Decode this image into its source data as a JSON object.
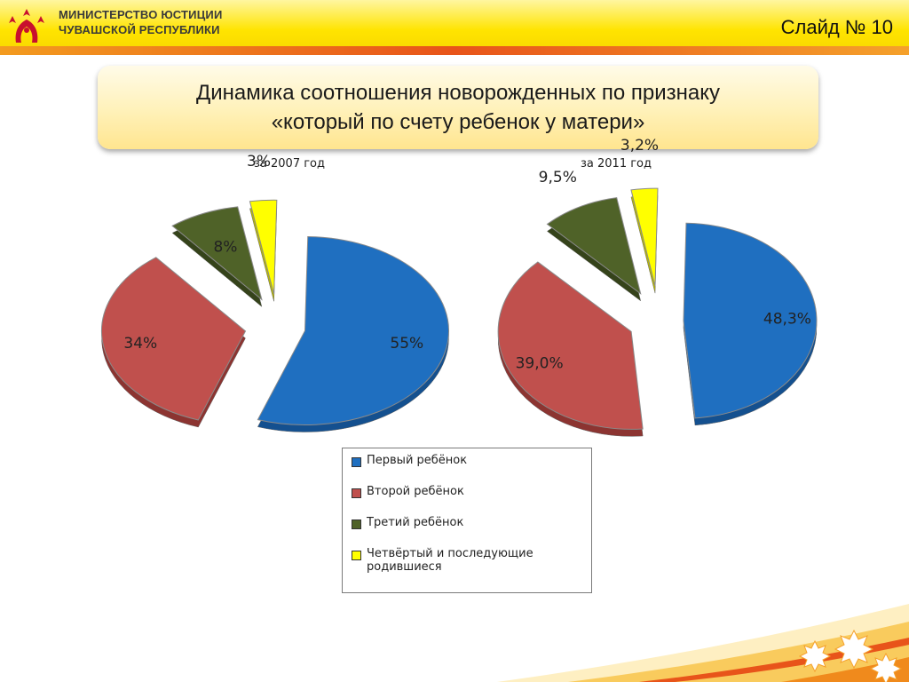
{
  "header": {
    "ministry_line1": "МИНИСТЕРСТВО ЮСТИЦИИ",
    "ministry_line2": "ЧУВАШСКОЙ РЕСПУБЛИКИ",
    "slide_number": "Слайд № 10"
  },
  "title": {
    "line1": "Динамика соотношения новорожденных по признаку",
    "line2": "«который по счету ребенок у матери»"
  },
  "chart_data": [
    {
      "type": "pie",
      "title": "за 2007 год",
      "categories": [
        "Первый ребёнок",
        "Второй ребёнок",
        "Третий ребёнок",
        "Четвёртый и последующие родившиеся"
      ],
      "values": [
        55,
        34,
        8,
        3
      ],
      "labels": [
        "55%",
        "34%",
        "8%",
        "3%"
      ],
      "colors": [
        "#1f6fc0",
        "#c0504d",
        "#4f6228",
        "#ffff00"
      ]
    },
    {
      "type": "pie",
      "title": "за 2011 год",
      "categories": [
        "Первый ребёнок",
        "Второй ребёнок",
        "Третий ребёнок",
        "Четвёртый и последующие родившиеся"
      ],
      "values": [
        48.3,
        39.0,
        9.5,
        3.2
      ],
      "labels": [
        "48,3%",
        "39,0%",
        "9,5%",
        "3,2%"
      ],
      "colors": [
        "#1f6fc0",
        "#c0504d",
        "#4f6228",
        "#ffff00"
      ]
    }
  ],
  "legend": {
    "items": [
      {
        "label": "Первый ребёнок",
        "color": "#1f6fc0"
      },
      {
        "label": "Второй ребёнок",
        "color": "#c0504d"
      },
      {
        "label": "Третий  ребёнок",
        "color": "#4f6228"
      },
      {
        "label": "Четвёртый и последующие родившиеся",
        "color": "#ffff00"
      }
    ]
  }
}
